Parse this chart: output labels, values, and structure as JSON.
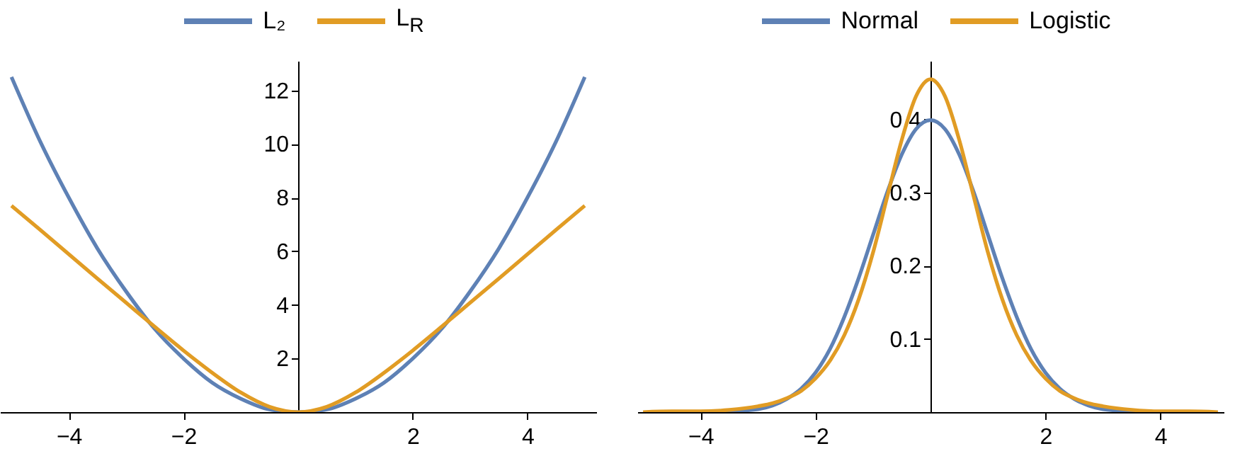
{
  "chart_data": [
    {
      "type": "line",
      "legend": "top",
      "x": [
        -5,
        -4.5,
        -4,
        -3.5,
        -3,
        -2.5,
        -2,
        -1.5,
        -1,
        -0.5,
        0,
        0.5,
        1,
        1.5,
        2,
        2.5,
        3,
        3.5,
        4,
        4.5,
        5
      ],
      "series": [
        {
          "name": "L₂",
          "color": "#5e81b5",
          "values": [
            12.5,
            10.1,
            8,
            6.1,
            4.5,
            3.1,
            2,
            1.1,
            0.5,
            0.1,
            0,
            0.1,
            0.5,
            1.1,
            2,
            3.1,
            4.5,
            6.1,
            8,
            10.1,
            12.5
          ]
        },
        {
          "name": "L$_{R}$",
          "color": "#e19c24",
          "values": [
            7.7,
            6.8,
            5.89,
            4.98,
            4.08,
            3.18,
            2.3,
            1.47,
            0.73,
            0.2,
            0,
            0.2,
            0.73,
            1.47,
            2.3,
            3.18,
            4.08,
            4.98,
            5.89,
            6.8,
            7.7
          ]
        }
      ],
      "xlim": [
        -5.2,
        5.2
      ],
      "ylim": [
        0,
        13.1
      ],
      "xticks": [
        -4,
        -2,
        2,
        4
      ],
      "yticks": [
        2,
        4,
        6,
        8,
        10,
        12
      ]
    },
    {
      "type": "line",
      "legend": "top",
      "x": [
        -5,
        -4.5,
        -4,
        -3.5,
        -3,
        -2.75,
        -2.5,
        -2.25,
        -2,
        -1.75,
        -1.5,
        -1.25,
        -1,
        -0.75,
        -0.5,
        -0.25,
        0,
        0.25,
        0.5,
        0.75,
        1,
        1.25,
        1.5,
        1.75,
        2,
        2.25,
        2.5,
        2.75,
        3,
        3.5,
        4,
        4.5,
        5
      ],
      "series": [
        {
          "name": "Normal",
          "color": "#5e81b5",
          "values": [
            null,
            null,
            0,
            0.001,
            0.004,
            0.009,
            0.018,
            0.032,
            0.054,
            0.086,
            0.13,
            0.183,
            0.242,
            0.301,
            0.352,
            0.387,
            0.399,
            0.387,
            0.352,
            0.301,
            0.242,
            0.183,
            0.13,
            0.086,
            0.054,
            0.032,
            0.018,
            0.009,
            0.004,
            0.001,
            0,
            null,
            null
          ]
        },
        {
          "name": "Logistic",
          "color": "#e19c24",
          "values": [
            0,
            0.001,
            0.001,
            0.003,
            0.008,
            0.012,
            0.019,
            0.029,
            0.046,
            0.07,
            0.105,
            0.154,
            0.218,
            0.295,
            0.372,
            0.432,
            0.455,
            0.432,
            0.372,
            0.295,
            0.218,
            0.154,
            0.105,
            0.07,
            0.046,
            0.029,
            0.019,
            0.012,
            0.008,
            0.003,
            0.001,
            0.001,
            0
          ]
        }
      ],
      "xlim": [
        -5.1,
        5.1
      ],
      "ylim": [
        0,
        0.48
      ],
      "xticks": [
        -4,
        -2,
        2,
        4
      ],
      "yticks": [
        0.1,
        0.2,
        0.3,
        0.4
      ]
    }
  ]
}
